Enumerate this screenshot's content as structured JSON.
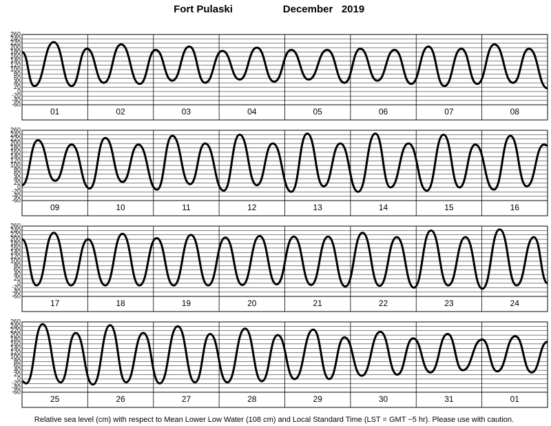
{
  "title": {
    "station": "Fort Pulaski",
    "period": "December   2019"
  },
  "footnote": "Relative sea level (cm) with respect to Mean Lower Low Water (108 cm) and Local Standard Time (LST = GMT −5 hr). Please use with caution.",
  "chart_data": [
    {
      "type": "line",
      "categories": [
        "01",
        "02",
        "03",
        "04",
        "05",
        "06",
        "07",
        "08"
      ],
      "x": [
        0,
        4.5,
        11.6,
        18.1,
        23.7,
        29.9,
        36.2,
        43.0,
        48.8,
        54.9,
        61.1,
        66.9,
        73.2,
        79.5,
        85.8,
        92.1,
        98.4,
        104.7,
        111.5,
        117.8,
        123.6,
        129.8,
        136.1,
        142.2,
        148.5,
        154.3,
        160.5,
        166.3,
        172.6,
        179.4,
        185.2,
        192
      ],
      "values": [
        180,
        25,
        225,
        25,
        195,
        40,
        215,
        35,
        190,
        50,
        205,
        40,
        185,
        55,
        200,
        45,
        190,
        55,
        190,
        40,
        195,
        50,
        190,
        35,
        205,
        25,
        195,
        35,
        215,
        40,
        195,
        15
      ],
      "xlim": [
        0,
        192
      ],
      "ylim": [
        -60,
        260
      ],
      "yticks": [
        -60,
        -40,
        -20,
        0,
        20,
        40,
        60,
        80,
        100,
        120,
        140,
        160,
        180,
        200,
        220,
        240,
        260
      ],
      "grid": true,
      "color": "#000000"
    },
    {
      "type": "line",
      "categories": [
        "09",
        "10",
        "11",
        "12",
        "13",
        "14",
        "15",
        "16"
      ],
      "x": [
        0,
        5.8,
        12.1,
        18.1,
        24.7,
        30.4,
        36.7,
        42.5,
        49.3,
        54.9,
        61.4,
        66.9,
        73.7,
        79.5,
        85.8,
        91.6,
        98.4,
        104.2,
        110.2,
        116.3,
        122.8,
        129.1,
        134.6,
        141.2,
        147.9,
        154.0,
        159.8,
        165.6,
        172.4,
        178.4,
        184.4,
        190.7,
        192
      ],
      "values": [
        10,
        215,
        30,
        195,
        -5,
        225,
        25,
        195,
        -10,
        235,
        15,
        200,
        -15,
        240,
        10,
        200,
        -20,
        245,
        5,
        200,
        -20,
        245,
        0,
        200,
        -15,
        240,
        0,
        195,
        -10,
        235,
        5,
        195,
        190
      ],
      "xlim": [
        0,
        192
      ],
      "ylim": [
        -60,
        260
      ],
      "yticks": [
        -60,
        -40,
        -20,
        0,
        20,
        40,
        60,
        80,
        100,
        120,
        140,
        160,
        180,
        200,
        220,
        240,
        260
      ],
      "grid": true,
      "color": "#000000"
    },
    {
      "type": "line",
      "categories": [
        "17",
        "18",
        "19",
        "20",
        "21",
        "22",
        "23",
        "24"
      ],
      "x": [
        0,
        5.3,
        11.6,
        17.9,
        24.1,
        30.4,
        36.7,
        42.9,
        49.2,
        55.4,
        61.7,
        68.0,
        74.3,
        80.5,
        86.8,
        93.0,
        99.3,
        105.6,
        111.8,
        118.1,
        124.4,
        130.6,
        136.9,
        143.2,
        149.4,
        155.7,
        162.0,
        168.2,
        174.5,
        180.7,
        187.0,
        192
      ],
      "values": [
        200,
        -10,
        230,
        -10,
        200,
        -10,
        225,
        -10,
        205,
        -10,
        220,
        -10,
        208,
        -8,
        215,
        -5,
        212,
        -8,
        212,
        -15,
        230,
        -12,
        210,
        -20,
        240,
        -10,
        210,
        -25,
        245,
        -10,
        210,
        0
      ],
      "xlim": [
        0,
        192
      ],
      "ylim": [
        -60,
        260
      ],
      "yticks": [
        -60,
        -40,
        -20,
        0,
        20,
        40,
        60,
        80,
        100,
        120,
        140,
        160,
        180,
        200,
        220,
        240,
        260
      ],
      "grid": true,
      "color": "#000000"
    },
    {
      "type": "line",
      "categories": [
        "25",
        "26",
        "27",
        "28",
        "29",
        "30",
        "31",
        "01"
      ],
      "x": [
        0,
        1.5,
        7.5,
        14.1,
        19.6,
        25.9,
        32.2,
        38.0,
        44.3,
        50.3,
        56.9,
        63.2,
        68.7,
        75.0,
        81.5,
        87.6,
        93.4,
        99.6,
        106.4,
        112.2,
        117.8,
        124.1,
        130.9,
        137.1,
        142.9,
        149.2,
        155.5,
        161.0,
        168.1,
        173.6,
        180.2,
        186.2,
        192
      ],
      "values": [
        -10,
        -20,
        250,
        -15,
        210,
        -25,
        245,
        -15,
        210,
        -20,
        240,
        -15,
        205,
        -15,
        230,
        -10,
        200,
        0,
        225,
        0,
        190,
        15,
        215,
        20,
        185,
        30,
        205,
        40,
        180,
        35,
        195,
        30,
        170
      ],
      "xlim": [
        0,
        192
      ],
      "ylim": [
        -60,
        260
      ],
      "yticks": [
        -60,
        -40,
        -20,
        0,
        20,
        40,
        60,
        80,
        100,
        120,
        140,
        160,
        180,
        200,
        220,
        240,
        260
      ],
      "grid": true,
      "color": "#000000"
    }
  ]
}
